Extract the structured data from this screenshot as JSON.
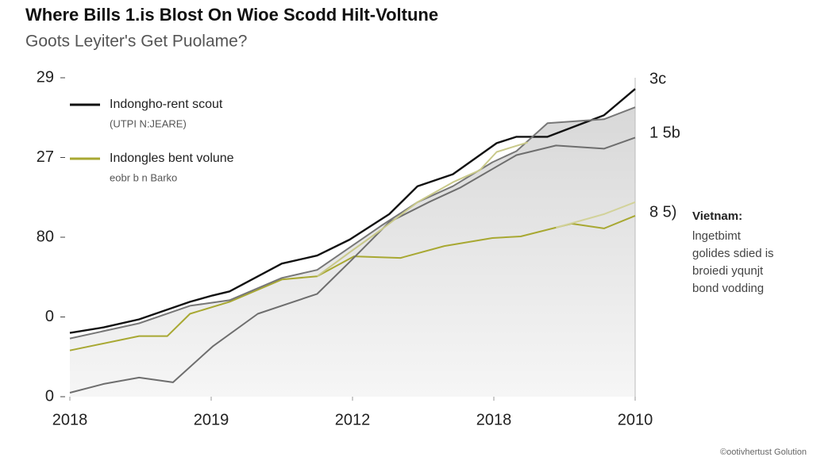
{
  "chart_data": {
    "type": "line",
    "title": "Where Bills 1.is Blost On Wioe Scodd Hilt-Voltune",
    "subtitle": "Goots Leyiter's Get Puolame?",
    "xlim": [
      0,
      4
    ],
    "xticks": [
      {
        "value": 0,
        "label": "2018"
      },
      {
        "value": 1,
        "label": "2019"
      },
      {
        "value": 2,
        "label": "2012"
      },
      {
        "value": 3,
        "label": "2018"
      },
      {
        "value": 4,
        "label": "2010"
      }
    ],
    "ylim": [
      0,
      4
    ],
    "yticks": [
      {
        "value": 4,
        "label": "29"
      },
      {
        "value": 3,
        "label": "27"
      },
      {
        "value": 2,
        "label": "80"
      },
      {
        "value": 1,
        "label": "0"
      },
      {
        "value": 0,
        "label": "0"
      }
    ],
    "legend_subtitles": [
      "(UTPI N:JEARE)",
      "eobr b n Barko"
    ],
    "right_labels": [
      "3c",
      "1 5b",
      "8 5)"
    ],
    "annotation": {
      "heading": "Vietnam:",
      "lines": [
        "lngetbimt",
        "golides sdied is",
        "broiedi yqunjt",
        "bond vodding"
      ]
    },
    "footer": "©ootivhertust Golution",
    "series": [
      {
        "name": "Indongho-rent scout",
        "color": "#111111",
        "x": [
          0,
          0.24,
          0.49,
          0.85,
          1.01,
          1.13,
          1.5,
          1.75,
          1.98,
          2.26,
          2.46,
          2.71,
          3.02,
          3.16,
          3.38,
          3.78,
          4
        ],
        "values": [
          0.8,
          0.87,
          0.97,
          1.19,
          1.27,
          1.32,
          1.67,
          1.77,
          1.97,
          2.29,
          2.64,
          2.79,
          3.18,
          3.26,
          3.26,
          3.53,
          3.86
        ]
      },
      {
        "name": "Indongles bent volune",
        "color": "#a8a832",
        "x": [
          0,
          0.49,
          0.69,
          0.85,
          1.13,
          1.5,
          1.75,
          2.01,
          2.34,
          2.65,
          2.99,
          3.19,
          3.55,
          3.78,
          4
        ],
        "values": [
          0.58,
          0.76,
          0.76,
          1.04,
          1.19,
          1.47,
          1.51,
          1.76,
          1.74,
          1.89,
          1.99,
          2.01,
          2.17,
          2.11,
          2.27
        ]
      },
      {
        "color": "#777777",
        "x": [
          0,
          0.49,
          0.85,
          1.13,
          1.5,
          1.75,
          2.2,
          2.46,
          2.71,
          2.99,
          3.16,
          3.38,
          3.78,
          4
        ],
        "values": [
          0.73,
          0.92,
          1.14,
          1.21,
          1.49,
          1.59,
          2.14,
          2.44,
          2.64,
          2.94,
          3.08,
          3.43,
          3.48,
          3.63
        ]
      },
      {
        "color": "#6e6e6e",
        "x": [
          0,
          0.24,
          0.49,
          0.73,
          1.01,
          1.33,
          1.75,
          1.98,
          2.26,
          2.54,
          2.76,
          3.16,
          3.44,
          3.78,
          4
        ],
        "values": [
          0.05,
          0.16,
          0.24,
          0.18,
          0.63,
          1.04,
          1.29,
          1.69,
          2.19,
          2.44,
          2.62,
          3.03,
          3.15,
          3.11,
          3.25
        ]
      },
      {
        "color": "#c9c98a",
        "x": [
          1.75,
          1.98,
          2.2,
          2.46,
          2.71,
          2.9,
          3.02,
          3.24
        ],
        "values": [
          1.51,
          1.81,
          2.09,
          2.44,
          2.69,
          2.84,
          3.07,
          3.19
        ]
      },
      {
        "color": "#d2d29a",
        "x": [
          3.44,
          3.78,
          4
        ],
        "values": [
          2.12,
          2.29,
          2.44
        ]
      }
    ]
  }
}
